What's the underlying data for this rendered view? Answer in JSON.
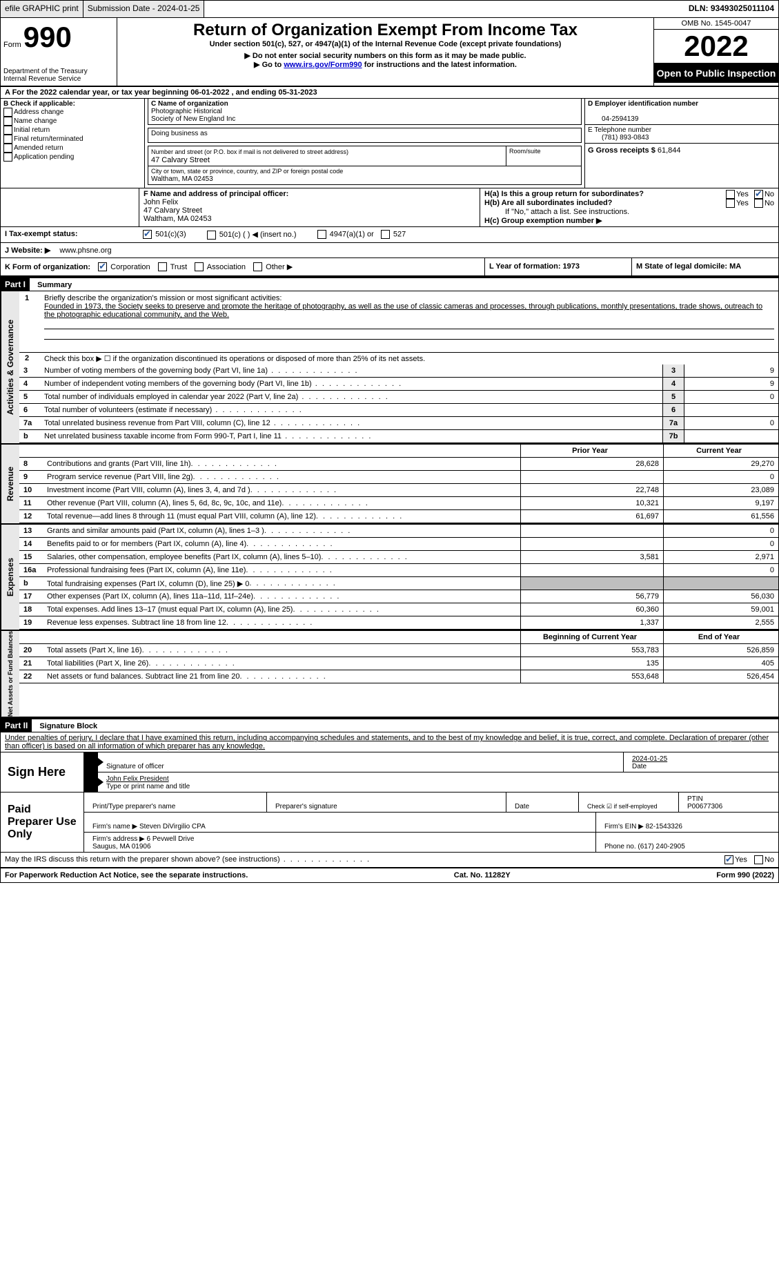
{
  "topbar": {
    "efile": "efile GRAPHIC print",
    "submission": "Submission Date - 2024-01-25",
    "dln": "DLN: 93493025011104"
  },
  "header": {
    "form_label": "Form",
    "form_number": "990",
    "dept": "Department of the Treasury",
    "irs": "Internal Revenue Service",
    "title": "Return of Organization Exempt From Income Tax",
    "subtitle": "Under section 501(c), 527, or 4947(a)(1) of the Internal Revenue Code (except private foundations)",
    "note1": "▶ Do not enter social security numbers on this form as it may be made public.",
    "note2_pre": "▶ Go to ",
    "note2_link": "www.irs.gov/Form990",
    "note2_post": " for instructions and the latest information.",
    "omb": "OMB No. 1545-0047",
    "year": "2022",
    "inspection": "Open to Public Inspection"
  },
  "sectionA": {
    "a_text": "A   For the 2022 calendar year, or tax year beginning 06-01-2022    , and ending 05-31-2023",
    "b_label": "B Check if applicable:",
    "b_items": [
      "Address change",
      "Name change",
      "Initial return",
      "Final return/terminated",
      "Amended return",
      "Application pending"
    ],
    "c_label": "C Name of organization",
    "org_name1": "Photographic Historical",
    "org_name2": "Society of New England Inc",
    "dba_label": "Doing business as",
    "addr_label": "Number and street (or P.O. box if mail is not delivered to street address)",
    "room_label": "Room/suite",
    "addr": "47 Calvary Street",
    "city_label": "City or town, state or province, country, and ZIP or foreign postal code",
    "city": "Waltham, MA  02453",
    "d_label": "D Employer identification number",
    "d_val": "04-2594139",
    "e_label": "E Telephone number",
    "e_val": "(781) 893-0843",
    "g_label": "G Gross receipts $",
    "g_val": "61,844",
    "f_label": "F Name and address of principal officer:",
    "f_name": "John Felix",
    "f_addr1": "47 Calvary Street",
    "f_addr2": "Waltham, MA  02453",
    "ha_label": "H(a)  Is this a group return for subordinates?",
    "hb_label": "H(b)  Are all subordinates included?",
    "hb_note": "If \"No,\" attach a list. See instructions.",
    "hc_label": "H(c)  Group exemption number ▶",
    "yes": "Yes",
    "no": "No",
    "i_label": "I   Tax-exempt status:",
    "i_501c3": "501(c)(3)",
    "i_501c": "501(c) (   ) ◀ (insert no.)",
    "i_4947": "4947(a)(1) or",
    "i_527": "527",
    "j_label": "J   Website: ▶",
    "j_val": "www.phsne.org",
    "k_label": "K Form of organization:",
    "k_corp": "Corporation",
    "k_trust": "Trust",
    "k_assoc": "Association",
    "k_other": "Other ▶",
    "l_label": "L Year of formation: 1973",
    "m_label": "M State of legal domicile: MA"
  },
  "part1": {
    "header": "Part I",
    "title": "Summary",
    "l1_label": "Briefly describe the organization's mission or most significant activities:",
    "l1_text": "Founded in 1973, the Society seeks to preserve and promote the heritage of photography, as well as the use of classic cameras and processes, through publications, monthly presentations, trade shows, outreach to the photographic educational community, and the Web.",
    "l2_text": "Check this box ▶ ☐  if the organization discontinued its operations or disposed of more than 25% of its net assets.",
    "governance_label": "Activities & Governance",
    "revenue_label": "Revenue",
    "expenses_label": "Expenses",
    "netassets_label": "Net Assets or Fund Balances",
    "lines_gov": [
      {
        "n": "3",
        "d": "Number of voting members of the governing body (Part VI, line 1a)",
        "box": "3",
        "v": "9"
      },
      {
        "n": "4",
        "d": "Number of independent voting members of the governing body (Part VI, line 1b)",
        "box": "4",
        "v": "9"
      },
      {
        "n": "5",
        "d": "Total number of individuals employed in calendar year 2022 (Part V, line 2a)",
        "box": "5",
        "v": "0"
      },
      {
        "n": "6",
        "d": "Total number of volunteers (estimate if necessary)",
        "box": "6",
        "v": ""
      },
      {
        "n": "7a",
        "d": "Total unrelated business revenue from Part VIII, column (C), line 12",
        "box": "7a",
        "v": "0"
      },
      {
        "n": "b",
        "d": "Net unrelated business taxable income from Form 990-T, Part I, line 11",
        "box": "7b",
        "v": ""
      }
    ],
    "prior_year": "Prior Year",
    "current_year": "Current Year",
    "lines_rev": [
      {
        "n": "8",
        "d": "Contributions and grants (Part VIII, line 1h)",
        "p": "28,628",
        "c": "29,270"
      },
      {
        "n": "9",
        "d": "Program service revenue (Part VIII, line 2g)",
        "p": "",
        "c": "0"
      },
      {
        "n": "10",
        "d": "Investment income (Part VIII, column (A), lines 3, 4, and 7d )",
        "p": "22,748",
        "c": "23,089"
      },
      {
        "n": "11",
        "d": "Other revenue (Part VIII, column (A), lines 5, 6d, 8c, 9c, 10c, and 11e)",
        "p": "10,321",
        "c": "9,197"
      },
      {
        "n": "12",
        "d": "Total revenue—add lines 8 through 11 (must equal Part VIII, column (A), line 12)",
        "p": "61,697",
        "c": "61,556"
      }
    ],
    "lines_exp": [
      {
        "n": "13",
        "d": "Grants and similar amounts paid (Part IX, column (A), lines 1–3 )",
        "p": "",
        "c": "0"
      },
      {
        "n": "14",
        "d": "Benefits paid to or for members (Part IX, column (A), line 4)",
        "p": "",
        "c": "0"
      },
      {
        "n": "15",
        "d": "Salaries, other compensation, employee benefits (Part IX, column (A), lines 5–10)",
        "p": "3,581",
        "c": "2,971"
      },
      {
        "n": "16a",
        "d": "Professional fundraising fees (Part IX, column (A), line 11e)",
        "p": "",
        "c": "0"
      },
      {
        "n": "b",
        "d": "Total fundraising expenses (Part IX, column (D), line 25) ▶ 0",
        "p": "SHADE",
        "c": "SHADE"
      },
      {
        "n": "17",
        "d": "Other expenses (Part IX, column (A), lines 11a–11d, 11f–24e)",
        "p": "56,779",
        "c": "56,030"
      },
      {
        "n": "18",
        "d": "Total expenses. Add lines 13–17 (must equal Part IX, column (A), line 25)",
        "p": "60,360",
        "c": "59,001"
      },
      {
        "n": "19",
        "d": "Revenue less expenses. Subtract line 18 from line 12",
        "p": "1,337",
        "c": "2,555"
      }
    ],
    "begin_year": "Beginning of Current Year",
    "end_year": "End of Year",
    "lines_net": [
      {
        "n": "20",
        "d": "Total assets (Part X, line 16)",
        "p": "553,783",
        "c": "526,859"
      },
      {
        "n": "21",
        "d": "Total liabilities (Part X, line 26)",
        "p": "135",
        "c": "405"
      },
      {
        "n": "22",
        "d": "Net assets or fund balances. Subtract line 21 from line 20",
        "p": "553,648",
        "c": "526,454"
      }
    ]
  },
  "part2": {
    "header": "Part II",
    "title": "Signature Block",
    "declaration": "Under penalties of perjury, I declare that I have examined this return, including accompanying schedules and statements, and to the best of my knowledge and belief, it is true, correct, and complete. Declaration of preparer (other than officer) is based on all information of which preparer has any knowledge.",
    "sign_here": "Sign Here",
    "sig_officer": "Signature of officer",
    "sig_date_val": "2024-01-25",
    "date_label": "Date",
    "officer_name": "John Felix  President",
    "type_name": "Type or print name and title",
    "paid_prep": "Paid Preparer Use Only",
    "print_name_label": "Print/Type preparer's name",
    "prep_sig_label": "Preparer's signature",
    "check_self": "Check ☑ if self-employed",
    "ptin_label": "PTIN",
    "ptin_val": "P00677306",
    "firm_name_label": "Firm's name    ▶",
    "firm_name": "Steven DiVirgilio CPA",
    "firm_ein_label": "Firm's EIN ▶",
    "firm_ein": "82-1543326",
    "firm_addr_label": "Firm's address ▶",
    "firm_addr1": "6 Pevwell Drive",
    "firm_addr2": "Saugus, MA  01906",
    "phone_label": "Phone no.",
    "phone": "(617) 240-2905",
    "discuss": "May the IRS discuss this return with the preparer shown above? (see instructions)"
  },
  "footer": {
    "left": "For Paperwork Reduction Act Notice, see the separate instructions.",
    "center": "Cat. No. 11282Y",
    "right": "Form 990 (2022)"
  }
}
